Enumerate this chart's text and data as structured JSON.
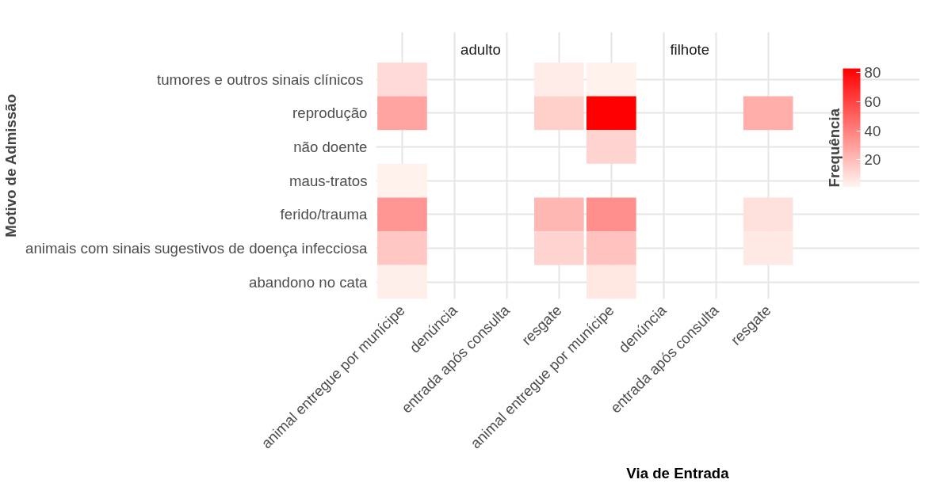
{
  "chart_data": {
    "type": "heatmap",
    "xlabel": "Via de Entrada",
    "ylabel": "Motivo de Admissão",
    "clabel": "Frequência",
    "color": "#ff0000",
    "clim": [
      1,
      83
    ],
    "cticks": [
      20,
      40,
      60,
      80
    ],
    "grid": true,
    "annotations": [
      "adulto",
      "filhote"
    ],
    "categories": [
      "animal entregue por munícipe",
      "denúncia",
      "entrada após consulta",
      "resgate",
      "animal entregue por munícipe",
      "denúncia",
      "entrada após consulta",
      "resgate"
    ],
    "y_categories": [
      "tumores  e outros sinais clínicos",
      "reprodução",
      "não doente",
      "maus-tratos",
      "ferido/trauma",
      "animais com sinais sugestivos de doença infecciosa",
      "abandono no cata"
    ],
    "cells": [
      [
        10,
        null,
        null,
        4,
        2,
        null,
        null,
        null
      ],
      [
        28,
        null,
        null,
        14,
        83,
        null,
        null,
        25
      ],
      [
        null,
        null,
        null,
        null,
        12,
        null,
        null,
        null
      ],
      [
        2,
        null,
        null,
        null,
        null,
        null,
        null,
        null
      ],
      [
        33,
        null,
        null,
        22,
        35,
        null,
        null,
        8
      ],
      [
        17,
        null,
        null,
        12,
        18,
        null,
        null,
        5
      ],
      [
        3,
        null,
        null,
        null,
        6,
        null,
        null,
        null
      ]
    ]
  }
}
